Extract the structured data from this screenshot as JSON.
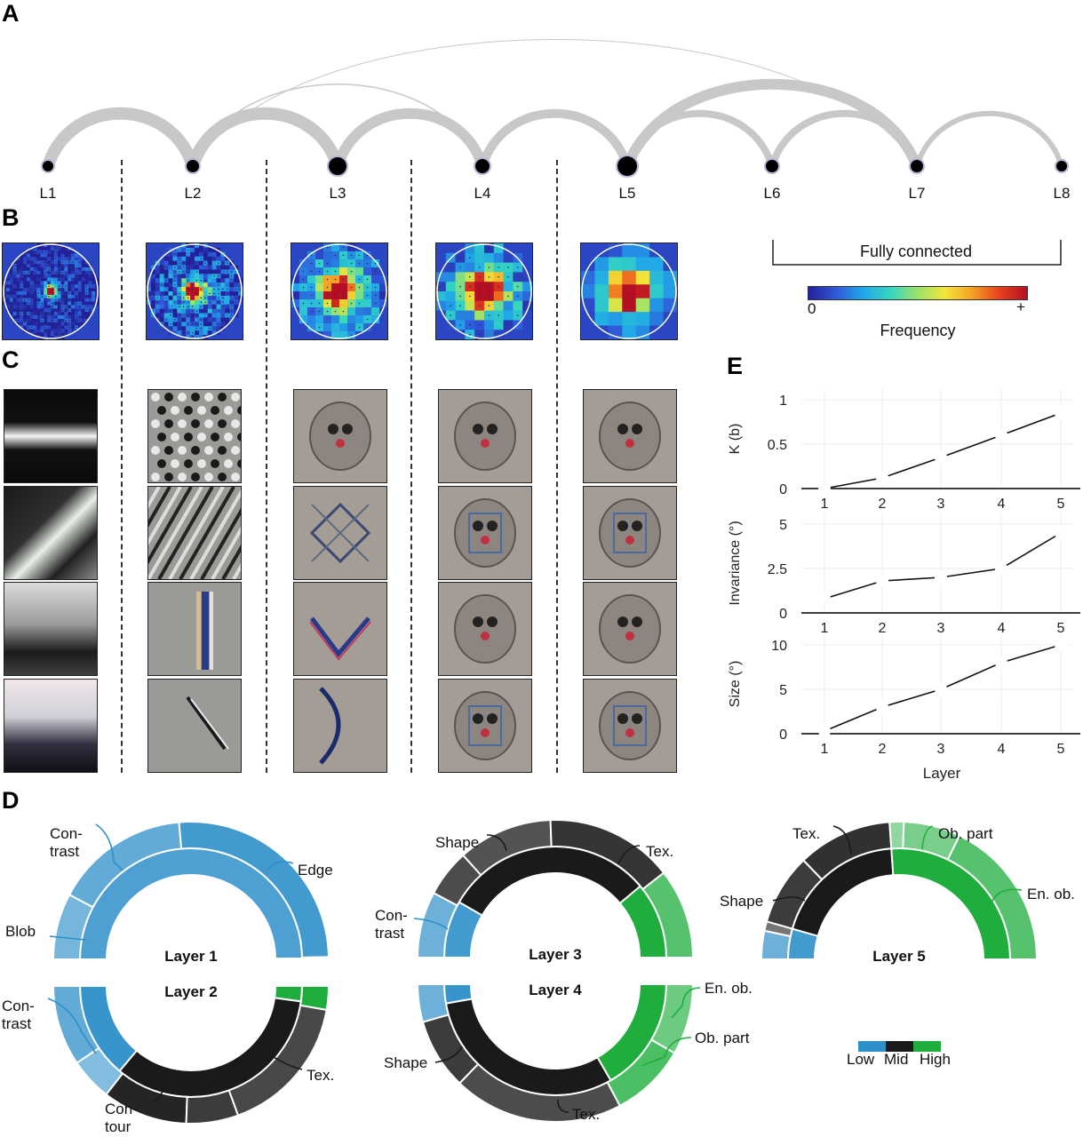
{
  "panels": {
    "a": "A",
    "b": "B",
    "c": "C",
    "d": "D",
    "e": "E"
  },
  "network": {
    "layers": [
      "L1",
      "L2",
      "L3",
      "L4",
      "L5",
      "L6",
      "L7",
      "L8"
    ],
    "fully_connected_label": "Fully connected",
    "edge_color": "#c8c8c8",
    "node_color": "#000000",
    "connections": [
      {
        "from": "L1",
        "to": "L2",
        "weight": 14
      },
      {
        "from": "L2",
        "to": "L3",
        "weight": 14
      },
      {
        "from": "L3",
        "to": "L4",
        "weight": 12
      },
      {
        "from": "L4",
        "to": "L5",
        "weight": 10
      },
      {
        "from": "L5",
        "to": "L6",
        "weight": 8
      },
      {
        "from": "L6",
        "to": "L7",
        "weight": 8
      },
      {
        "from": "L7",
        "to": "L8",
        "weight": 6
      },
      {
        "from": "L2",
        "to": "L4",
        "weight": 1.5
      },
      {
        "from": "L2",
        "to": "L7",
        "weight": 1
      },
      {
        "from": "L5",
        "to": "L7",
        "weight": 12
      }
    ]
  },
  "colorbar": {
    "min_label": "0",
    "max_label": "+",
    "title": "Frequency"
  },
  "rings": {
    "colors": {
      "low": "#2e8fc9",
      "mid": "#1a1a1a",
      "high": "#1fae3d"
    },
    "legend": {
      "low": "Low",
      "mid": "Mid",
      "high": "High"
    },
    "layer1": {
      "title": "Layer 1",
      "labels": {
        "contrast": "Con-\ntrast",
        "edge": "Edge",
        "blob": "Blob"
      }
    },
    "layer2": {
      "title": "Layer 2",
      "labels": {
        "contrast": "Con-\ntrast",
        "contour": "Con-\ntour",
        "texture": "Tex."
      }
    },
    "layer3": {
      "title": "Layer 3",
      "labels": {
        "shape": "Shape",
        "texture": "Tex.",
        "contrast": "Con-\ntrast"
      }
    },
    "layer4": {
      "title": "Layer 4",
      "labels": {
        "shape": "Shape",
        "texture": "Tex.",
        "entire_object": "En. ob.",
        "object_part": "Ob. part"
      }
    },
    "layer5": {
      "title": "Layer 5",
      "labels": {
        "texture": "Tex.",
        "shape": "Shape",
        "object_part": "Ob. part",
        "entire_object": "En. ob."
      }
    }
  },
  "chart_data": [
    {
      "type": "line",
      "x": [
        1,
        2,
        3,
        4,
        5
      ],
      "values": [
        0,
        0.12,
        0.35,
        0.6,
        0.85
      ],
      "ylabel": "K (b)",
      "ylim": [
        0,
        1
      ],
      "yticks": [
        "0",
        "0.5",
        "1"
      ]
    },
    {
      "type": "line",
      "x": [
        1,
        2,
        3,
        4,
        5
      ],
      "values": [
        0.8,
        1.8,
        2.0,
        2.5,
        4.5
      ],
      "ylabel": "Invariance (°)",
      "ylim": [
        0,
        5
      ],
      "yticks": [
        "0",
        "2.5",
        "5"
      ]
    },
    {
      "type": "line",
      "x": [
        1,
        2,
        3,
        4,
        5
      ],
      "values": [
        0.3,
        3,
        5,
        8,
        10
      ],
      "ylabel": "Size (°)",
      "ylim": [
        0,
        10
      ],
      "yticks": [
        "0",
        "5",
        "10"
      ],
      "xlabel": "Layer",
      "xticks": [
        "1",
        "2",
        "3",
        "4",
        "5"
      ]
    }
  ]
}
